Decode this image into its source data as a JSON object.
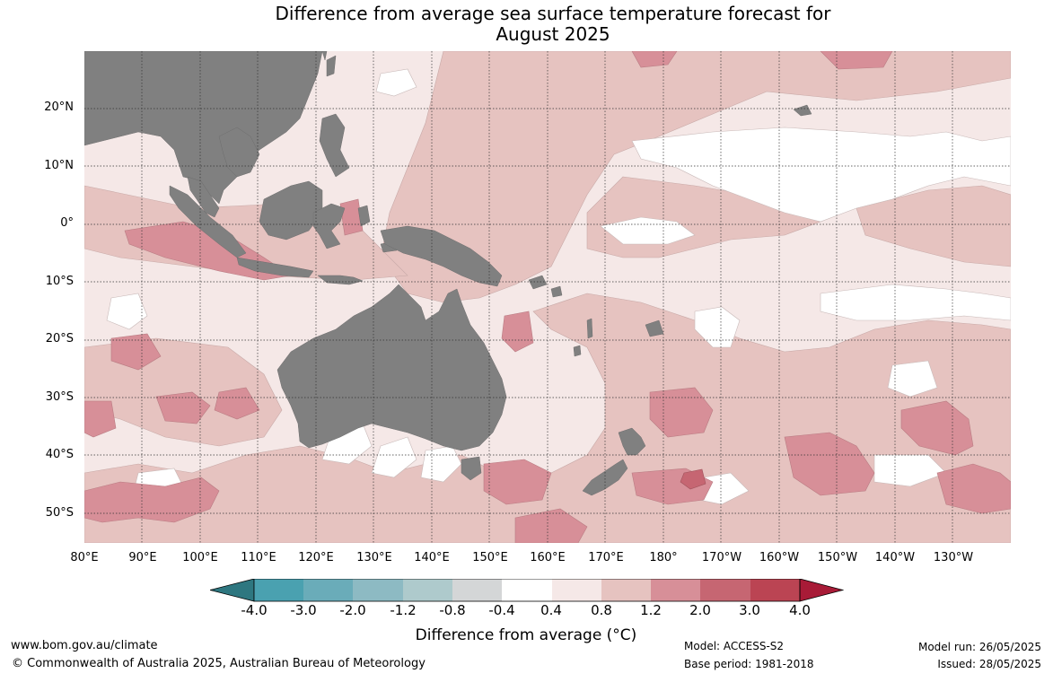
{
  "title": {
    "line1": "Difference from average sea surface temperature forecast for",
    "line2": "August 2025"
  },
  "map": {
    "region": "Indo-Pacific",
    "lon_range": [
      "80°E",
      "130°W"
    ],
    "lat_range": [
      "55°S",
      "30°N"
    ],
    "gridlines": true,
    "land_color": "#808080",
    "lat_labels": [
      "20°N",
      "10°N",
      "0°",
      "10°S",
      "20°S",
      "30°S",
      "40°S",
      "50°S"
    ],
    "lon_labels": [
      "80°E",
      "90°E",
      "100°E",
      "110°E",
      "120°E",
      "130°E",
      "140°E",
      "150°E",
      "160°E",
      "170°E",
      "180°",
      "170°W",
      "160°W",
      "150°W",
      "140°W",
      "130°W"
    ]
  },
  "colorbar": {
    "ticks": [
      "-4.0",
      "-3.0",
      "-2.0",
      "-1.2",
      "-0.8",
      "-0.4",
      "0.4",
      "0.8",
      "1.2",
      "2.0",
      "3.0",
      "4.0"
    ],
    "colors": {
      "below_min": "#2e7780",
      "bins": [
        "#4aa1b0",
        "#6aacb9",
        "#8dbac3",
        "#aecacc",
        "#d4d6d7",
        "#ffffff",
        "#f5e8e7",
        "#e6c3c0",
        "#d78f98",
        "#c66672",
        "#bb4453"
      ],
      "above_max": "#a81b37"
    },
    "label": "Difference from average (°C)"
  },
  "footer": {
    "website": "www.bom.gov.au/climate",
    "copyright": "© Commonwealth of Australia 2025, Australian Bureau of Meteorology",
    "model": "Model: ACCESS-S2",
    "base_period": "Base period: 1981-2018",
    "model_run": "Model run: 26/05/2025",
    "issued": "Issued: 28/05/2025"
  }
}
